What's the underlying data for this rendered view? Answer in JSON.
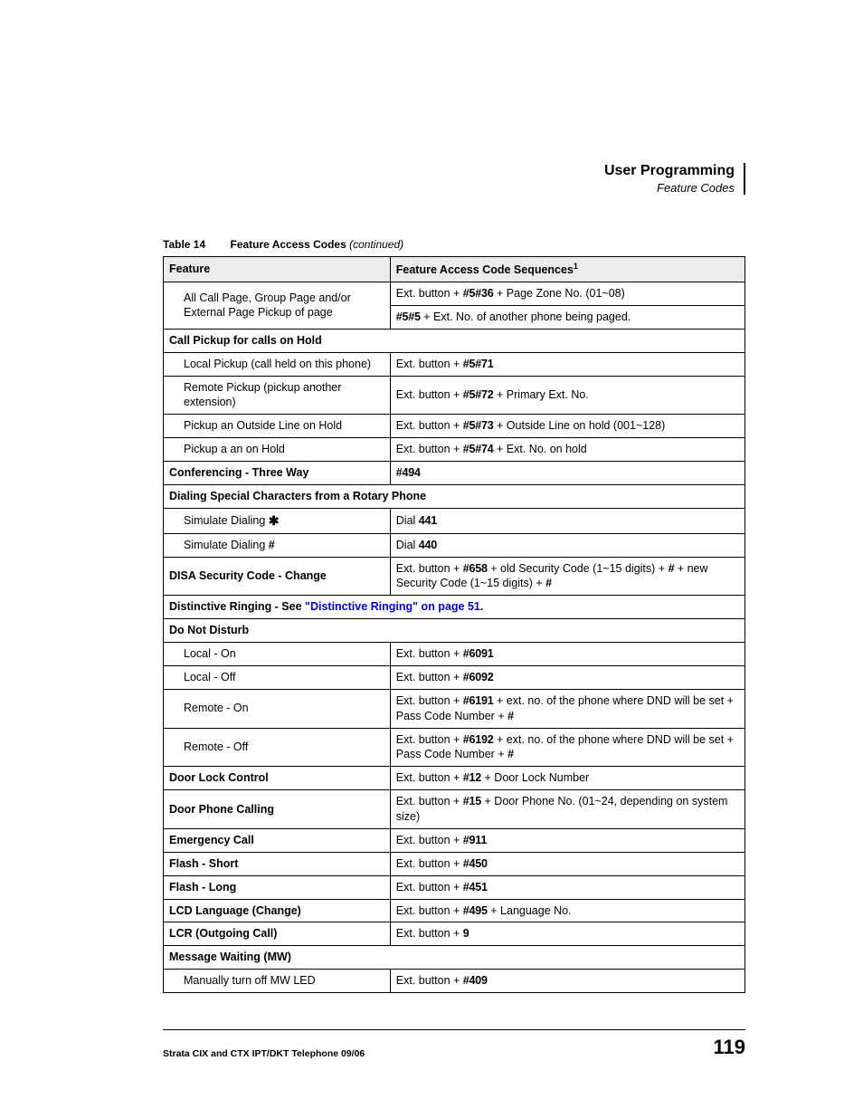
{
  "header": {
    "title": "User Programming",
    "subtitle": "Feature Codes"
  },
  "table_caption": {
    "number": "Table 14",
    "title": "Feature Access Codes",
    "continued": "(continued)"
  },
  "columns": {
    "feature": "Feature",
    "sequence": "Feature Access Code Sequences",
    "sup": "1"
  },
  "r": {
    "allcall_feat": "All Call Page, Group Page and/or External Page Pickup of page",
    "allcall_seq1_a": "Ext. button + ",
    "allcall_seq1_b": "#5#36",
    "allcall_seq1_c": " + Page Zone No. (01~08)",
    "allcall_seq2_a": "#5#5",
    "allcall_seq2_b": " + Ext. No. of another phone being paged.",
    "pickup_hold_title": "Call Pickup for calls on Hold",
    "local_pickup_feat": "Local Pickup (call held on this phone)",
    "local_pickup_a": "Ext. button + ",
    "local_pickup_b": "#5#71",
    "remote_pickup_feat": "Remote Pickup (pickup another extension)",
    "remote_pickup_a": "Ext. button + ",
    "remote_pickup_b": "#5#72",
    "remote_pickup_c": " + Primary Ext. No.",
    "outside_hold_feat": "Pickup an Outside Line on Hold",
    "outside_hold_a": "Ext. button + ",
    "outside_hold_b": "#5#73",
    "outside_hold_c": " + Outside Line on hold (001~128)",
    "pickup_a_feat": "Pickup a an on Hold",
    "pickup_a_a": "Ext. button + ",
    "pickup_a_b": "#5#74",
    "pickup_a_c": " + Ext. No. on hold",
    "conf_feat": "Conferencing - Three Way",
    "conf_code": "#494",
    "rotary_title": "Dialing Special Characters from a Rotary Phone",
    "sim_star_feat": "Simulate Dialing ",
    "sim_star_sym": "✱",
    "sim_star_a": "Dial ",
    "sim_star_b": "441",
    "sim_hash_feat": "Simulate Dialing ",
    "sim_hash_sym": "#",
    "sim_hash_a": "Dial ",
    "sim_hash_b": "440",
    "disa_feat": "DISA Security Code - Change",
    "disa_a": "Ext. button + ",
    "disa_b": "#658",
    "disa_c": " + old Security Code (1~15 digits) + ",
    "disa_d": "#",
    "disa_e": " + new Security Code (1~15 digits) + ",
    "disa_f": "#",
    "distinctive_a": "Distinctive Ringing - See ",
    "distinctive_link": "\"Distinctive Ringing\" on page 51",
    "distinctive_b": ".",
    "dnd_title": "Do Not Disturb",
    "dnd_local_on_feat": "Local - On",
    "dnd_local_on_a": "Ext. button + ",
    "dnd_local_on_b": "#6091",
    "dnd_local_off_feat": "Local - Off",
    "dnd_local_off_a": "Ext. button + ",
    "dnd_local_off_b": "#6092",
    "dnd_remote_on_feat": "Remote - On",
    "dnd_remote_on_a": "Ext. button + ",
    "dnd_remote_on_b": "#6191",
    "dnd_remote_on_c": " + ext. no. of the phone where DND will be set + Pass Code Number + ",
    "dnd_remote_on_d": "#",
    "dnd_remote_off_feat": "Remote - Off",
    "dnd_remote_off_a": "Ext. button + ",
    "dnd_remote_off_b": "#6192",
    "dnd_remote_off_c": " + ext. no. of the phone where DND will be set + Pass Code Number + ",
    "dnd_remote_off_d": "#",
    "doorlock_feat": "Door Lock Control",
    "doorlock_a": "Ext. button + ",
    "doorlock_b": "#12",
    "doorlock_c": " + Door Lock Number",
    "doorphone_feat": "Door Phone Calling",
    "doorphone_a": "Ext. button + ",
    "doorphone_b": "#15",
    "doorphone_c": " + Door Phone No. (01~24, depending on system size)",
    "emerg_feat": "Emergency Call",
    "emerg_a": "Ext. button + ",
    "emerg_b": "#911",
    "flash_short_feat": "Flash - Short",
    "flash_short_a": "Ext. button + ",
    "flash_short_b": "#450",
    "flash_long_feat": "Flash - Long",
    "flash_long_a": "Ext. button + ",
    "flash_long_b": "#451",
    "lcd_feat": "LCD Language (Change)",
    "lcd_a": "Ext. button + ",
    "lcd_b": "#495",
    "lcd_c": " + Language No.",
    "lcr_feat": "LCR (Outgoing Call)",
    "lcr_a": "Ext. button + ",
    "lcr_b": "9",
    "mw_title": "Message Waiting (MW)",
    "mw_off_feat": "Manually turn off MW LED",
    "mw_off_a": "Ext. button + ",
    "mw_off_b": "#409"
  },
  "footer": {
    "left": "Strata CIX and CTX IPT/DKT Telephone    09/06",
    "page": "119"
  }
}
